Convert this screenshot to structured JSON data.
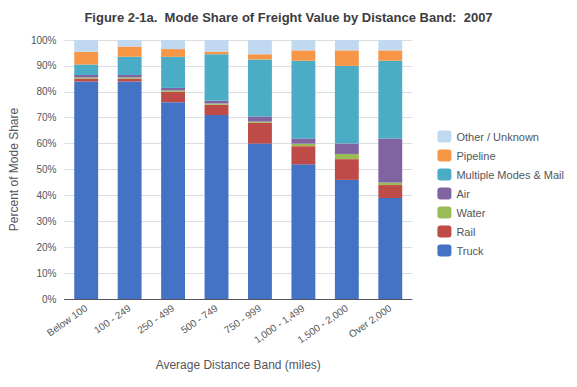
{
  "chart_data": {
    "type": "bar",
    "title": "Figure 2-1a.  Mode Share of Freight Value by Distance Band:  2007",
    "xlabel": "Average Distance Band (miles)",
    "ylabel": "Percent of Mode Share",
    "categories": [
      "Below 100",
      "100 - 249",
      "250 - 499",
      "500 - 749",
      "750 - 999",
      "1,000 - 1,499",
      "1,500 - 2,000",
      "Over 2,000"
    ],
    "series": [
      {
        "name": "Truck",
        "color": "#4472C4",
        "values": [
          84,
          84,
          76,
          71,
          60,
          52,
          46,
          39
        ]
      },
      {
        "name": "Rail",
        "color": "#BE4B48",
        "values": [
          1,
          1,
          4,
          4,
          8,
          7,
          8,
          5
        ]
      },
      {
        "name": "Water",
        "color": "#9BBB59",
        "values": [
          0.5,
          0.5,
          0.5,
          0.5,
          0.5,
          1,
          2,
          1
        ]
      },
      {
        "name": "Air",
        "color": "#8064A2",
        "values": [
          1,
          1,
          1,
          1,
          2,
          2,
          4,
          17
        ]
      },
      {
        "name": "Multiple Modes & Mail",
        "color": "#4BACC6",
        "values": [
          4,
          7,
          12,
          18,
          22,
          30,
          30,
          30
        ]
      },
      {
        "name": "Pipeline",
        "color": "#F79646",
        "values": [
          5,
          4,
          3,
          1,
          2,
          4,
          6,
          4
        ]
      },
      {
        "name": "Other / Unknown",
        "color": "#C0D9F0",
        "values": [
          4.5,
          2.5,
          3.5,
          4.5,
          5.5,
          4,
          4,
          4
        ]
      }
    ],
    "ylim": [
      0,
      100
    ],
    "yticks": [
      {
        "value": 0,
        "label": "0%"
      },
      {
        "value": 10,
        "label": "10%"
      },
      {
        "value": 20,
        "label": "20%"
      },
      {
        "value": 30,
        "label": "30%"
      },
      {
        "value": 40,
        "label": "40%"
      },
      {
        "value": 50,
        "label": "50%"
      },
      {
        "value": 60,
        "label": "60%"
      },
      {
        "value": 70,
        "label": "70%"
      },
      {
        "value": 80,
        "label": "80%"
      },
      {
        "value": 90,
        "label": "90%"
      },
      {
        "value": 100,
        "label": "100%"
      }
    ],
    "grid": true,
    "stacked": true,
    "legend": "right"
  }
}
